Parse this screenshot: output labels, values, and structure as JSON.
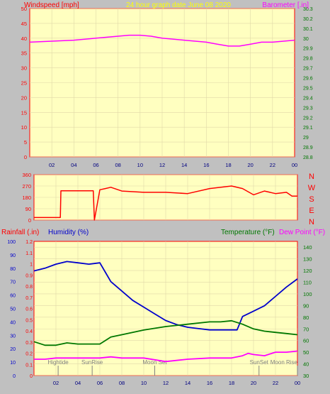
{
  "colors": {
    "background": "#c0c0c0",
    "plot_bg": "#ffffc0",
    "grid": "#e0d8a8",
    "red": "#ff0000",
    "blue": "#0000cc",
    "green": "#007700",
    "magenta": "#ff00ff",
    "title_yellow": "#ffff00",
    "event": "#808080"
  },
  "chart_data": [
    {
      "id": "wind",
      "type": "line",
      "title": "24 hour graph date  June 08 2020",
      "left_label": "Windspeed [mph]",
      "right_label": "Barometer [.in]",
      "xlim": [
        0,
        24
      ],
      "x_ticks": [
        "02",
        "04",
        "06",
        "08",
        "10",
        "12",
        "14",
        "16",
        "18",
        "20",
        "22",
        "00"
      ],
      "y_left": {
        "lim": [
          0,
          50
        ],
        "ticks": [
          "0",
          "5",
          "10",
          "15",
          "20",
          "25",
          "30",
          "35",
          "40",
          "45",
          "50"
        ]
      },
      "y_right": {
        "lim": [
          28.8,
          30.3
        ],
        "ticks": [
          "28.8",
          "28.9",
          "29",
          "29.1",
          "29.2",
          "29.3",
          "29.4",
          "29.5",
          "29.6",
          "29.7",
          "29.8",
          "29.9",
          "30",
          "30.1",
          "30.2",
          "30.3"
        ]
      },
      "series": [
        {
          "axis": "right",
          "color": "#ff00ff",
          "x": [
            0,
            2,
            4,
            6,
            8,
            9,
            10,
            11,
            12,
            14,
            16,
            17,
            18,
            19,
            20,
            21,
            22,
            23,
            24
          ],
          "y": [
            29.96,
            29.97,
            29.98,
            30.0,
            30.02,
            30.03,
            30.03,
            30.02,
            30.0,
            29.98,
            29.96,
            29.94,
            29.92,
            29.92,
            29.94,
            29.96,
            29.96,
            29.97,
            29.98
          ]
        }
      ]
    },
    {
      "id": "direction",
      "type": "line",
      "xlim": [
        0,
        24
      ],
      "y_left": {
        "lim": [
          0,
          360
        ],
        "ticks": [
          "0",
          "90",
          "180",
          "270",
          "360"
        ]
      },
      "compass": [
        "N",
        "W",
        "S",
        "E",
        "N"
      ],
      "series": [
        {
          "color": "#ff0000",
          "x": [
            0,
            2.4,
            2.45,
            5.4,
            5.5,
            6.0,
            6.5,
            7.0,
            8.0,
            10.0,
            12.0,
            14.0,
            16.0,
            18.0,
            19.0,
            20.0,
            21.0,
            22.0,
            23.0,
            23.5,
            24.0
          ],
          "y": [
            20,
            20,
            232,
            232,
            0,
            240,
            250,
            260,
            230,
            220,
            220,
            210,
            250,
            270,
            250,
            200,
            230,
            210,
            220,
            190,
            190
          ]
        }
      ]
    },
    {
      "id": "temp",
      "type": "line",
      "left_label_1": "Rainfall (.in)",
      "left_label_2": "Humidity (%)",
      "right_label_1": "Temperature (°F)",
      "right_label_2": "Dew Point (°F)",
      "xlim": [
        0,
        24
      ],
      "x_ticks": [
        "02",
        "04",
        "06",
        "08",
        "10",
        "12",
        "14",
        "16",
        "18",
        "20",
        "22",
        "00"
      ],
      "y_rain": {
        "lim": [
          0,
          1.2
        ],
        "ticks": [
          "0",
          "0.1",
          "0.2",
          "0.3",
          "0.4",
          "0.5",
          "0.6",
          "0.7",
          "0.8",
          "0.9",
          "1",
          "1.1",
          "1.2"
        ]
      },
      "y_humidity": {
        "lim": [
          0,
          100
        ],
        "ticks": [
          "0",
          "10",
          "20",
          "30",
          "40",
          "50",
          "60",
          "70",
          "80",
          "90",
          "100"
        ]
      },
      "y_temp": {
        "lim": [
          30,
          145
        ],
        "ticks": [
          "30",
          "40",
          "50",
          "60",
          "70",
          "80",
          "90",
          "100",
          "110",
          "120",
          "130",
          "140"
        ]
      },
      "series": [
        {
          "name": "Humidity",
          "axis": "humidity",
          "color": "#0000cc",
          "x": [
            0,
            1,
            2,
            3,
            4,
            5,
            6,
            6.5,
            7,
            8,
            9,
            10,
            11,
            12,
            13,
            14,
            15,
            16,
            17,
            18,
            18.5,
            19,
            20,
            21,
            22,
            23,
            24
          ],
          "y": [
            78,
            80,
            83,
            85,
            84,
            83,
            84,
            77,
            70,
            63,
            56,
            51,
            46,
            41,
            38,
            36,
            35,
            34,
            34,
            34,
            34,
            44,
            48,
            52,
            59,
            66,
            72
          ]
        },
        {
          "name": "Temperature",
          "axis": "temp",
          "color": "#007700",
          "x": [
            0,
            1,
            2,
            3,
            4,
            5,
            6,
            7,
            8,
            10,
            12,
            14,
            16,
            17,
            18,
            19,
            20,
            21,
            22,
            23,
            24
          ],
          "y": [
            59,
            56,
            56,
            58,
            57,
            57,
            57,
            63,
            65,
            69,
            72,
            74,
            76,
            76,
            77,
            74,
            70,
            68,
            67,
            66,
            65
          ]
        },
        {
          "name": "Dew Point",
          "axis": "temp",
          "color": "#ff00ff",
          "x": [
            0,
            1,
            2,
            3,
            4,
            5,
            6,
            7,
            8,
            10,
            12,
            14,
            16,
            18,
            19,
            19.5,
            20,
            21,
            22,
            23,
            24
          ],
          "y": [
            44,
            44,
            45,
            45,
            45,
            45,
            45,
            46,
            45,
            45,
            42,
            44,
            45,
            45,
            47,
            49,
            48,
            47,
            50,
            50,
            51
          ]
        }
      ],
      "events": [
        {
          "label": "Hightide",
          "x": 2.2
        },
        {
          "label": "SunRise",
          "x": 5.3
        },
        {
          "label": "Moon Set",
          "x": 11.0
        },
        {
          "label": "SunSet",
          "x": 20.5
        },
        {
          "label": "Moon Rise",
          "x": 24.0
        }
      ]
    }
  ]
}
